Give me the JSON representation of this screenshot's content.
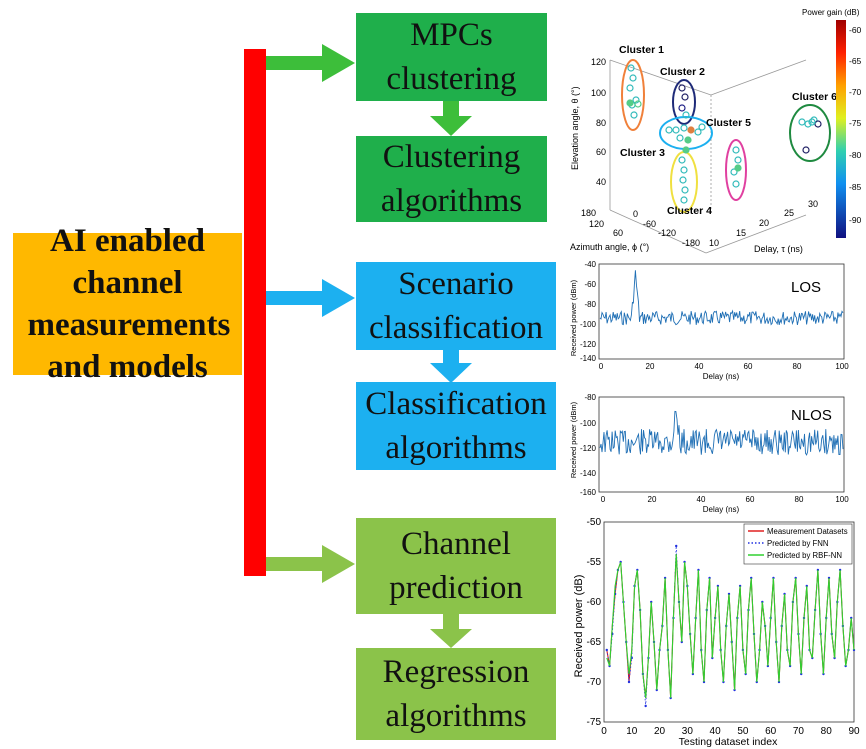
{
  "main_box": {
    "text": "AI enabled channel measurements and models",
    "color": "#FFB800"
  },
  "spine_color": "#FF0000",
  "boxes": [
    {
      "id": "mpc",
      "text": "MPCs clustering",
      "color": "#1FAF4B"
    },
    {
      "id": "clust",
      "text": "Clustering algorithms",
      "color": "#1FAF4B"
    },
    {
      "id": "scen",
      "text": "Scenario classification",
      "color": "#1CB0F0"
    },
    {
      "id": "classalg",
      "text": "Classification algorithms",
      "color": "#1CB0F0"
    },
    {
      "id": "pred",
      "text": "Channel prediction",
      "color": "#8BC34A"
    },
    {
      "id": "regr",
      "text": "Regression algorithms",
      "color": "#8BC34A"
    }
  ],
  "cluster_plot": {
    "colorbar_title": "Power gain (dB)",
    "colorbar_ticks": [
      "-60",
      "-65",
      "-70",
      "-75",
      "-80",
      "-85",
      "-90"
    ],
    "zlabel": "Elevation angle, θ (°)",
    "xlabel": "Azimuth angle, ϕ (°)",
    "ylabel": "Delay, τ (ns)",
    "z_ticks": [
      "120",
      "100",
      "80",
      "60",
      "40"
    ],
    "az_ticks": [
      "180",
      "120",
      "60",
      "0",
      "-60",
      "-120",
      "-180"
    ],
    "delay_ticks": [
      "10",
      "15",
      "20",
      "25",
      "30"
    ],
    "clusters": [
      "Cluster 1",
      "Cluster 2",
      "Cluster 3",
      "Cluster 4",
      "Cluster 5",
      "Cluster 6"
    ]
  },
  "los_plot": {
    "label": "LOS",
    "xlabel": "Delay (ns)",
    "ylabel": "Received power (dBm)",
    "y_ticks": [
      "-40",
      "-60",
      "-80",
      "-100",
      "-120",
      "-140"
    ],
    "x_ticks": [
      "0",
      "20",
      "40",
      "60",
      "80",
      "100"
    ]
  },
  "nlos_plot": {
    "label": "NLOS",
    "xlabel": "Delay (ns)",
    "ylabel": "Received power (dBm)",
    "y_ticks": [
      "-80",
      "-100",
      "-120",
      "-140",
      "-160"
    ],
    "x_ticks": [
      "0",
      "20",
      "40",
      "60",
      "80",
      "100"
    ]
  },
  "chart_data": {
    "type": "line",
    "xlabel": "Testing dataset index",
    "ylabel": "Received power (dB)",
    "xlim": [
      0,
      90
    ],
    "ylim": [
      -75,
      -50
    ],
    "x_ticks": [
      "0",
      "10",
      "20",
      "30",
      "40",
      "50",
      "60",
      "70",
      "80",
      "90"
    ],
    "y_ticks": [
      "-50",
      "-55",
      "-60",
      "-65",
      "-70",
      "-75"
    ],
    "legend_position": "top-right",
    "series": [
      {
        "name": "Measurement Datasets",
        "color": "#E02020",
        "style": "solid",
        "values": [
          -66,
          -68,
          -63,
          -59,
          -56,
          -55,
          -60,
          -65,
          -70,
          -66,
          -58,
          -56,
          -61,
          -69,
          -72,
          -67,
          -60,
          -65,
          -71,
          -66,
          -63,
          -57,
          -66,
          -72,
          -62,
          -54,
          -60,
          -65,
          -55,
          -58,
          -64,
          -69,
          -62,
          -56,
          -66,
          -70,
          -61,
          -57,
          -67,
          -62,
          -58,
          -66,
          -70,
          -63,
          -59,
          -65,
          -71,
          -62,
          -58,
          -66,
          -69,
          -61,
          -57,
          -64,
          -70,
          -66,
          -60,
          -63,
          -68,
          -62,
          -57,
          -65,
          -70,
          -63,
          -59,
          -66,
          -68,
          -60,
          -57,
          -64,
          -69,
          -62,
          -58,
          -66,
          -67,
          -61,
          -56,
          -64,
          -69,
          -62,
          -57,
          -64,
          -67,
          -60,
          -56,
          -63,
          -68,
          -66,
          -62,
          -66
        ]
      },
      {
        "name": "Predicted by FNN",
        "color": "#2030E0",
        "style": "dotted",
        "values": [
          -66,
          -68,
          -64,
          -59,
          -56,
          -55,
          -60,
          -65,
          -70,
          -67,
          -58,
          -56,
          -61,
          -69,
          -73,
          -67,
          -60,
          -65,
          -71,
          -66,
          -63,
          -57,
          -66,
          -72,
          -62,
          -53,
          -60,
          -65,
          -55,
          -58,
          -64,
          -69,
          -62,
          -56,
          -66,
          -70,
          -61,
          -57,
          -67,
          -62,
          -58,
          -66,
          -70,
          -63,
          -59,
          -65,
          -71,
          -62,
          -58,
          -66,
          -69,
          -61,
          -57,
          -64,
          -70,
          -66,
          -60,
          -63,
          -68,
          -62,
          -57,
          -65,
          -70,
          -63,
          -59,
          -66,
          -68,
          -60,
          -57,
          -64,
          -69,
          -62,
          -58,
          -66,
          -67,
          -61,
          -56,
          -64,
          -69,
          -62,
          -57,
          -64,
          -67,
          -60,
          -56,
          -63,
          -68,
          -66,
          -62,
          -66
        ]
      },
      {
        "name": "Predicted by RBF-NN",
        "color": "#30D030",
        "style": "solid",
        "values": [
          -67,
          -68,
          -63,
          -58,
          -56,
          -55,
          -60,
          -65,
          -69,
          -66,
          -58,
          -56,
          -61,
          -69,
          -72,
          -67,
          -60,
          -65,
          -71,
          -66,
          -63,
          -57,
          -66,
          -72,
          -62,
          -54,
          -60,
          -65,
          -55,
          -58,
          -64,
          -69,
          -62,
          -56,
          -66,
          -70,
          -61,
          -57,
          -67,
          -62,
          -58,
          -66,
          -70,
          -63,
          -59,
          -65,
          -71,
          -62,
          -58,
          -66,
          -69,
          -61,
          -57,
          -64,
          -70,
          -66,
          -60,
          -63,
          -68,
          -62,
          -57,
          -65,
          -70,
          -63,
          -59,
          -66,
          -68,
          -60,
          -57,
          -64,
          -69,
          -62,
          -58,
          -66,
          -67,
          -61,
          -56,
          -64,
          -69,
          -62,
          -57,
          -64,
          -67,
          -60,
          -56,
          -63,
          -68,
          -66,
          -62,
          -66
        ]
      }
    ]
  }
}
